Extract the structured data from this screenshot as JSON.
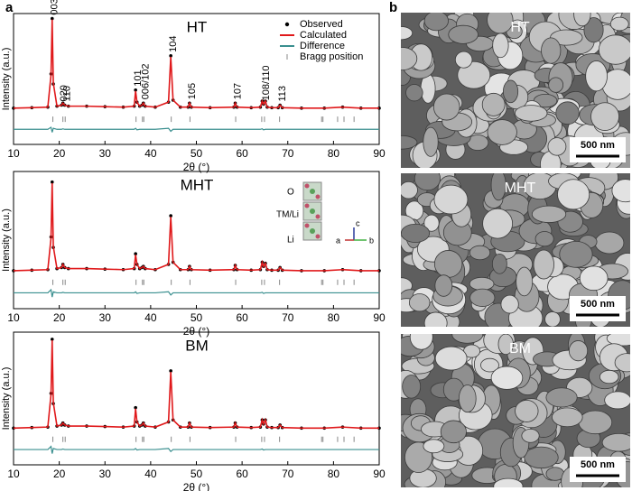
{
  "panel_labels": {
    "a": "a",
    "b": "b"
  },
  "chart_data": [
    {
      "type": "line",
      "title": "HT",
      "xlabel": "2θ (°)",
      "ylabel": "Intensity (a.u.)",
      "xlim": [
        10,
        90
      ],
      "ylim": [
        -30,
        100
      ],
      "xticks": [
        10,
        20,
        30,
        40,
        50,
        60,
        70,
        80,
        90
      ],
      "legend": "upper right",
      "x": [
        10,
        14,
        17.5,
        18.2,
        18.45,
        18.7,
        19.5,
        20.5,
        20.8,
        21.2,
        22,
        26,
        30,
        34,
        36.4,
        36.7,
        37.0,
        37.6,
        38.1,
        38.4,
        38.8,
        41,
        43.9,
        44.4,
        44.9,
        46.5,
        48.2,
        48.5,
        48.9,
        53,
        58.2,
        58.5,
        58.9,
        62,
        64.0,
        64.4,
        64.7,
        65.1,
        65.5,
        66.5,
        67.9,
        68.3,
        68.8,
        73,
        78,
        82,
        86,
        90
      ],
      "series": [
        {
          "name": "Observed",
          "color": "#000000",
          "values": [
            6,
            6.5,
            7,
            40,
            95,
            30,
            8,
            9,
            11,
            9,
            8,
            8,
            7.5,
            7,
            8,
            24,
            12,
            8,
            9,
            11,
            8,
            7,
            12,
            58,
            14,
            7,
            7,
            11,
            7,
            6.5,
            7,
            11,
            7,
            6.5,
            7,
            13,
            10,
            13,
            7,
            6.5,
            6.5,
            9,
            6.5,
            6,
            6,
            7,
            6,
            6
          ]
        },
        {
          "name": "Calculated",
          "color": "#e0191b",
          "values": [
            6,
            6.5,
            7,
            39,
            94,
            31,
            8,
            9,
            11,
            9,
            8,
            8,
            7.5,
            7,
            8,
            23,
            12,
            8,
            9,
            11,
            8,
            7,
            12,
            57,
            14,
            7,
            7,
            11,
            7,
            6.5,
            7,
            11,
            7,
            6.5,
            7,
            13,
            10,
            13,
            7,
            6.5,
            6.5,
            9,
            6.5,
            6,
            6,
            7,
            6,
            6
          ]
        },
        {
          "name": "Difference",
          "color": "#3a8f8f",
          "values": [
            -15,
            -15,
            -15,
            -13,
            -18,
            -14,
            -15,
            -15,
            -14.5,
            -15,
            -15,
            -15,
            -15,
            -15,
            -15,
            -14,
            -15.5,
            -15,
            -15,
            -15,
            -15,
            -15,
            -14,
            -17,
            -15,
            -15,
            -15,
            -15,
            -15,
            -15,
            -15,
            -15,
            -15,
            -15,
            -15,
            -14.5,
            -15.5,
            -15,
            -15,
            -15,
            -15,
            -15,
            -15,
            -15,
            -15,
            -15,
            -15,
            -15
          ]
        },
        {
          "name": "Bragg position",
          "color": "#888888",
          "x": [
            18.6,
            20.8,
            21.3,
            36.8,
            38.2,
            38.5,
            44.5,
            48.6,
            58.6,
            64.3,
            64.9,
            68.2,
            77.4,
            77.7,
            80.9,
            82.3,
            84.5
          ],
          "values": [
            -5,
            -5,
            -5,
            -5,
            -5,
            -5,
            -5,
            -5,
            -5,
            -5,
            -5,
            -5,
            -5,
            -5,
            -5,
            -5,
            -5
          ]
        }
      ],
      "annotations": [
        {
          "text": "003",
          "x": 18.45
        },
        {
          "text": "020",
          "x": 20.5
        },
        {
          "text": "110",
          "x": 21.2
        },
        {
          "text": "101",
          "x": 36.7
        },
        {
          "text": "006/102",
          "x": 38.4
        },
        {
          "text": "104",
          "x": 44.4
        },
        {
          "text": "105",
          "x": 48.5
        },
        {
          "text": "107",
          "x": 58.5
        },
        {
          "text": "108/110",
          "x": 64.7
        },
        {
          "text": "113",
          "x": 68.3
        }
      ]
    },
    {
      "type": "line",
      "title": "MHT",
      "xlabel": "2θ (°)",
      "ylabel": "Intensity (a.u.)",
      "xlim": [
        10,
        90
      ],
      "ylim": [
        -30,
        100
      ],
      "xticks": [
        10,
        20,
        30,
        40,
        50,
        60,
        70,
        80,
        90
      ],
      "inset_labels": {
        "o": "O",
        "tm": "TM/Li",
        "li": "Li",
        "c": "c",
        "a": "a",
        "b": "b"
      },
      "x": [
        10,
        14,
        17.5,
        18.2,
        18.45,
        18.7,
        19.5,
        20.5,
        20.8,
        21.2,
        22,
        26,
        30,
        34,
        36.4,
        36.7,
        37.0,
        37.6,
        38.1,
        38.4,
        38.8,
        41,
        43.9,
        44.4,
        44.9,
        46.5,
        48.2,
        48.5,
        48.9,
        53,
        58.2,
        58.5,
        58.9,
        62,
        64.0,
        64.4,
        64.7,
        65.1,
        65.5,
        66.5,
        67.9,
        68.3,
        68.8,
        73,
        78,
        82,
        86,
        90
      ],
      "series": [
        {
          "name": "Observed",
          "color": "#000000",
          "values": [
            6,
            6.5,
            7,
            38,
            90,
            28,
            8,
            9,
            12,
            9,
            8,
            8,
            7.5,
            7,
            8,
            22,
            12,
            8,
            9,
            10,
            8,
            7,
            12,
            58,
            14,
            7,
            7,
            10,
            7,
            6.5,
            7,
            11,
            7,
            6.5,
            7,
            14,
            10,
            13,
            7,
            6.5,
            6.5,
            9,
            6.5,
            6,
            6,
            7,
            6,
            6
          ]
        },
        {
          "name": "Calculated",
          "color": "#e0191b",
          "values": [
            6,
            6.5,
            7,
            37,
            89,
            29,
            8,
            9,
            12,
            9,
            8,
            8,
            7.5,
            7,
            8,
            21,
            12,
            8,
            9,
            10,
            8,
            7,
            12,
            57,
            14,
            7,
            7,
            10,
            7,
            6.5,
            7,
            11,
            7,
            6.5,
            7,
            14,
            10,
            13,
            7,
            6.5,
            6.5,
            9,
            6.5,
            6,
            6,
            7,
            6,
            6
          ]
        },
        {
          "name": "Difference",
          "color": "#3a8f8f",
          "values": [
            -15,
            -15,
            -15,
            -12,
            -19,
            -14,
            -15,
            -15,
            -14.5,
            -15,
            -15,
            -15,
            -15,
            -15,
            -15,
            -14,
            -15.5,
            -15,
            -15,
            -15,
            -15,
            -15,
            -14,
            -17,
            -15,
            -15,
            -15,
            -15,
            -15,
            -15,
            -15,
            -15,
            -15,
            -15,
            -15,
            -14.5,
            -15.5,
            -15,
            -15,
            -15,
            -15,
            -15,
            -15,
            -15,
            -15,
            -15,
            -15,
            -15
          ]
        },
        {
          "name": "Bragg position",
          "color": "#888888",
          "x": [
            18.6,
            20.8,
            21.3,
            36.8,
            38.2,
            38.5,
            44.5,
            48.6,
            58.6,
            64.3,
            64.9,
            68.2,
            77.4,
            77.7,
            80.9,
            82.3,
            84.5
          ],
          "values": [
            -5,
            -5,
            -5,
            -5,
            -5,
            -5,
            -5,
            -5,
            -5,
            -5,
            -5,
            -5,
            -5,
            -5,
            -5,
            -5,
            -5
          ]
        }
      ]
    },
    {
      "type": "line",
      "title": "BM",
      "xlabel": "2θ (°)",
      "ylabel": "Intensity (a.u.)",
      "xlim": [
        10,
        90
      ],
      "ylim": [
        -30,
        100
      ],
      "xticks": [
        10,
        20,
        30,
        40,
        50,
        60,
        70,
        80,
        90
      ],
      "x": [
        10,
        14,
        17.5,
        18.2,
        18.45,
        18.7,
        19.5,
        20.5,
        20.8,
        21.2,
        22,
        26,
        30,
        34,
        36.4,
        36.7,
        37.0,
        37.6,
        38.1,
        38.4,
        38.8,
        41,
        43.9,
        44.4,
        44.9,
        46.5,
        48.2,
        48.5,
        48.9,
        53,
        58.2,
        58.5,
        58.9,
        62,
        64.0,
        64.4,
        64.7,
        65.1,
        65.5,
        66.5,
        67.9,
        68.3,
        68.8,
        73,
        78,
        82,
        86,
        90
      ],
      "series": [
        {
          "name": "Observed",
          "color": "#000000",
          "values": [
            6,
            6.5,
            7,
            40,
            93,
            30,
            8,
            9,
            11,
            9,
            8,
            8,
            7.5,
            7,
            8,
            26,
            12,
            8,
            9,
            11,
            8,
            7,
            12,
            62,
            14,
            7,
            7,
            11,
            7,
            6.5,
            7,
            11,
            7,
            6.5,
            7,
            14,
            10,
            14,
            7,
            6.5,
            6.5,
            9,
            6.5,
            6,
            6,
            7,
            6,
            6
          ]
        },
        {
          "name": "Calculated",
          "color": "#e0191b",
          "values": [
            6,
            6.5,
            7,
            39,
            92,
            31,
            8,
            9,
            11,
            9,
            8,
            8,
            7.5,
            7,
            8,
            25,
            12,
            8,
            9,
            11,
            8,
            7,
            12,
            61,
            14,
            7,
            7,
            11,
            7,
            6.5,
            7,
            11,
            7,
            6.5,
            7,
            14,
            10,
            14,
            7,
            6.5,
            6.5,
            9,
            6.5,
            6,
            6,
            7,
            6,
            6
          ]
        },
        {
          "name": "Difference",
          "color": "#3a8f8f",
          "values": [
            -15,
            -15,
            -15,
            -12,
            -19,
            -14,
            -15,
            -15,
            -14.5,
            -15,
            -15,
            -15,
            -15,
            -15,
            -15,
            -14,
            -15.5,
            -15,
            -15,
            -15,
            -15,
            -15,
            -14,
            -17,
            -15,
            -15,
            -15,
            -15,
            -15,
            -15,
            -15,
            -15,
            -15,
            -15,
            -15,
            -14.5,
            -15.5,
            -15,
            -15,
            -15,
            -15,
            -15,
            -15,
            -15,
            -15,
            -15,
            -15,
            -15
          ]
        },
        {
          "name": "Bragg position",
          "color": "#888888",
          "x": [
            18.6,
            20.8,
            21.3,
            36.8,
            38.2,
            38.5,
            44.5,
            48.6,
            58.6,
            64.3,
            64.9,
            68.2,
            77.4,
            77.7,
            80.9,
            82.3,
            84.5
          ],
          "values": [
            -5,
            -5,
            -5,
            -5,
            -5,
            -5,
            -5,
            -5,
            -5,
            -5,
            -5,
            -5,
            -5,
            -5,
            -5,
            -5,
            -5
          ]
        }
      ]
    }
  ],
  "sem_panels": [
    {
      "label": "HT",
      "scale_bar": "500 nm"
    },
    {
      "label": "MHT",
      "scale_bar": "500 nm"
    },
    {
      "label": "BM",
      "scale_bar": "500 nm"
    }
  ]
}
